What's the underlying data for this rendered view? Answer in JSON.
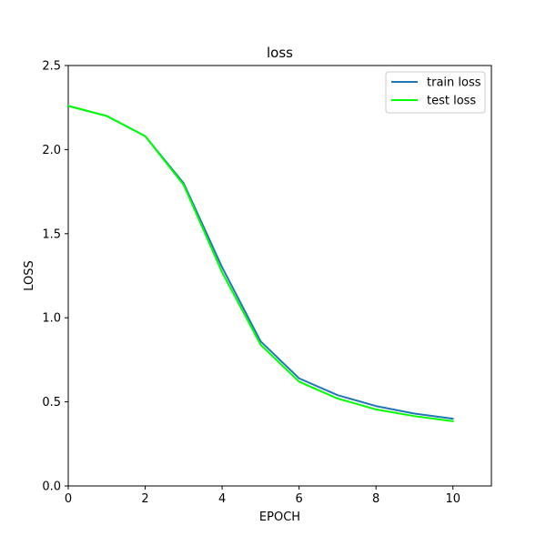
{
  "chart_data": {
    "type": "line",
    "title": "loss",
    "xlabel": "EPOCH",
    "ylabel": "LOSS",
    "xlim": [
      0,
      11
    ],
    "ylim": [
      0,
      2.5
    ],
    "xticks": [
      0,
      2,
      4,
      6,
      8,
      10
    ],
    "yticks": [
      0.0,
      0.5,
      1.0,
      1.5,
      2.0,
      2.5
    ],
    "xtick_labels": [
      "0",
      "2",
      "4",
      "6",
      "8",
      "10"
    ],
    "ytick_labels": [
      "0.0",
      "0.5",
      "1.0",
      "1.5",
      "2.0",
      "2.5"
    ],
    "grid": false,
    "legend_position": "top-right",
    "x": [
      0,
      1,
      2,
      3,
      4,
      5,
      6,
      7,
      8,
      9,
      10
    ],
    "series": [
      {
        "name": "train loss",
        "color": "#1f77b4",
        "values": [
          2.26,
          2.2,
          2.08,
          1.8,
          1.3,
          0.86,
          0.64,
          0.54,
          0.475,
          0.43,
          0.4
        ]
      },
      {
        "name": "test loss",
        "color": "#00ff00",
        "values": [
          2.26,
          2.2,
          2.08,
          1.79,
          1.27,
          0.84,
          0.62,
          0.52,
          0.455,
          0.415,
          0.385
        ]
      }
    ]
  }
}
